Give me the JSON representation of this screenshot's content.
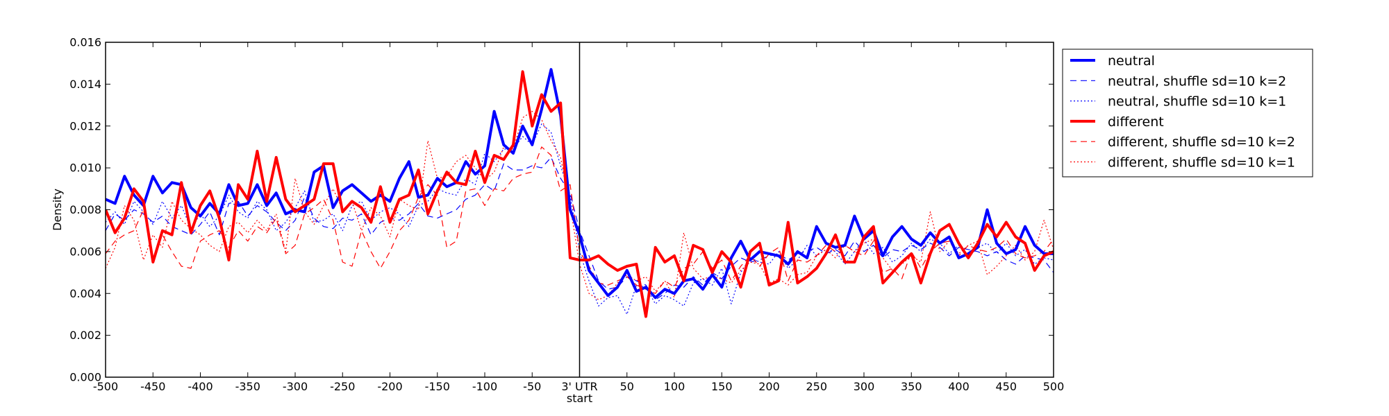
{
  "chart_data": {
    "type": "line",
    "xlabel": "",
    "ylabel": "Density",
    "xlim": [
      -500,
      500
    ],
    "ylim": [
      0,
      0.016
    ],
    "grid": false,
    "legend_position": "outside-right-top",
    "x_ticks": [
      -500,
      -450,
      -400,
      -350,
      -300,
      -250,
      -200,
      -150,
      -100,
      -50,
      0,
      50,
      100,
      150,
      200,
      250,
      300,
      350,
      400,
      450,
      500
    ],
    "x_tick_labels": [
      "-500",
      "-450",
      "-400",
      "-350",
      "-300",
      "-250",
      "-200",
      "-150",
      "-100",
      "-50",
      "3' UTR",
      "50",
      "100",
      "150",
      "200",
      "250",
      "300",
      "350",
      "400",
      "450",
      "500"
    ],
    "x_tick_sublabel": "start",
    "y_ticks": [
      0,
      0.002,
      0.004,
      0.006,
      0.008,
      0.01,
      0.012,
      0.014,
      0.016
    ],
    "y_tick_labels": [
      "0.000",
      "0.002",
      "0.004",
      "0.006",
      "0.008",
      "0.010",
      "0.012",
      "0.014",
      "0.016"
    ],
    "vertical_line_x": 0,
    "x": [
      -500,
      -490,
      -480,
      -470,
      -460,
      -450,
      -440,
      -430,
      -420,
      -410,
      -400,
      -390,
      -380,
      -370,
      -360,
      -350,
      -340,
      -330,
      -320,
      -310,
      -300,
      -290,
      -280,
      -270,
      -260,
      -250,
      -240,
      -230,
      -220,
      -210,
      -200,
      -190,
      -180,
      -170,
      -160,
      -150,
      -140,
      -130,
      -120,
      -110,
      -100,
      -90,
      -80,
      -70,
      -60,
      -50,
      -40,
      -30,
      -20,
      -10,
      0,
      10,
      20,
      30,
      40,
      50,
      60,
      70,
      80,
      90,
      100,
      110,
      120,
      130,
      140,
      150,
      160,
      170,
      180,
      190,
      200,
      210,
      220,
      230,
      240,
      250,
      260,
      270,
      280,
      290,
      300,
      310,
      320,
      330,
      340,
      350,
      360,
      370,
      380,
      390,
      400,
      410,
      420,
      430,
      440,
      450,
      460,
      470,
      480,
      490,
      500
    ],
    "series": [
      {
        "name": "neutral",
        "color": "#0000ff",
        "style": "solid",
        "width": 4,
        "values": [
          0.0085,
          0.0083,
          0.0096,
          0.0087,
          0.0082,
          0.0096,
          0.0088,
          0.0093,
          0.0092,
          0.0081,
          0.0077,
          0.0083,
          0.0078,
          0.0092,
          0.0082,
          0.0083,
          0.0092,
          0.0082,
          0.0088,
          0.0078,
          0.008,
          0.0079,
          0.0098,
          0.0101,
          0.0081,
          0.0089,
          0.0092,
          0.0088,
          0.0084,
          0.0087,
          0.0084,
          0.0095,
          0.0103,
          0.0086,
          0.0087,
          0.0095,
          0.0091,
          0.0093,
          0.0103,
          0.0097,
          0.0101,
          0.0127,
          0.0111,
          0.0107,
          0.012,
          0.0111,
          0.0128,
          0.0147,
          0.0125,
          0.008,
          0.0068,
          0.0051,
          0.0045,
          0.0039,
          0.0043,
          0.0051,
          0.0041,
          0.0043,
          0.0038,
          0.0042,
          0.004,
          0.0046,
          0.0047,
          0.0042,
          0.0049,
          0.0043,
          0.0057,
          0.0065,
          0.0056,
          0.006,
          0.0059,
          0.0058,
          0.0054,
          0.006,
          0.0057,
          0.0072,
          0.0064,
          0.0062,
          0.0063,
          0.0077,
          0.0066,
          0.007,
          0.0058,
          0.0067,
          0.0072,
          0.0066,
          0.0063,
          0.0069,
          0.0064,
          0.0067,
          0.0057,
          0.0059,
          0.0062,
          0.008,
          0.0064,
          0.0059,
          0.0061,
          0.0072,
          0.0063,
          0.0059,
          0.0059
        ]
      },
      {
        "name": "neutral, shuffle sd=10 k=2",
        "color": "#0000ff",
        "style": "dashed",
        "width": 1.2,
        "values": [
          0.007,
          0.0078,
          0.0075,
          0.008,
          0.0078,
          0.0074,
          0.0077,
          0.0072,
          0.007,
          0.0068,
          0.0073,
          0.0079,
          0.0068,
          0.0083,
          0.0084,
          0.0077,
          0.0082,
          0.0079,
          0.0074,
          0.007,
          0.0075,
          0.0086,
          0.0076,
          0.0072,
          0.0071,
          0.0076,
          0.0075,
          0.0078,
          0.0068,
          0.0074,
          0.0076,
          0.0075,
          0.0078,
          0.0083,
          0.0077,
          0.0076,
          0.0078,
          0.008,
          0.0085,
          0.0087,
          0.0092,
          0.0089,
          0.0102,
          0.0099,
          0.0099,
          0.0101,
          0.01,
          0.0105,
          0.0095,
          0.0088,
          0.007,
          0.0058,
          0.0046,
          0.0042,
          0.0043,
          0.0048,
          0.0046,
          0.0044,
          0.0037,
          0.004,
          0.0044,
          0.0043,
          0.0048,
          0.0044,
          0.005,
          0.0047,
          0.0053,
          0.0057,
          0.0055,
          0.0056,
          0.0058,
          0.0059,
          0.0056,
          0.0059,
          0.006,
          0.0062,
          0.0059,
          0.0061,
          0.0058,
          0.0065,
          0.006,
          0.0063,
          0.0057,
          0.0061,
          0.006,
          0.0063,
          0.0061,
          0.0064,
          0.0062,
          0.0058,
          0.0062,
          0.0061,
          0.006,
          0.0058,
          0.006,
          0.0056,
          0.0054,
          0.0058,
          0.0057,
          0.0056,
          0.005
        ]
      },
      {
        "name": "neutral, shuffle sd=10 k=1",
        "color": "#0000ff",
        "style": "dotted",
        "width": 1.2,
        "values": [
          0.0074,
          0.0079,
          0.0073,
          0.0084,
          0.0079,
          0.0073,
          0.0084,
          0.0076,
          0.0082,
          0.0071,
          0.0078,
          0.0072,
          0.0077,
          0.0087,
          0.0079,
          0.0076,
          0.0084,
          0.008,
          0.007,
          0.0074,
          0.0081,
          0.0089,
          0.0074,
          0.0075,
          0.0078,
          0.007,
          0.0082,
          0.0084,
          0.0075,
          0.0079,
          0.0081,
          0.0078,
          0.0072,
          0.0082,
          0.0084,
          0.009,
          0.0088,
          0.0087,
          0.0095,
          0.0092,
          0.0107,
          0.0103,
          0.0109,
          0.0109,
          0.0115,
          0.0111,
          0.0121,
          0.0117,
          0.0101,
          0.0087,
          0.006,
          0.0046,
          0.0034,
          0.0038,
          0.0039,
          0.003,
          0.0044,
          0.0043,
          0.0035,
          0.0039,
          0.0037,
          0.0034,
          0.0045,
          0.0047,
          0.0044,
          0.0052,
          0.0035,
          0.005,
          0.0057,
          0.0055,
          0.0054,
          0.006,
          0.0052,
          0.0056,
          0.0063,
          0.0058,
          0.0061,
          0.006,
          0.0054,
          0.006,
          0.0066,
          0.0059,
          0.0062,
          0.0055,
          0.0058,
          0.0064,
          0.006,
          0.0066,
          0.0064,
          0.0059,
          0.0063,
          0.0057,
          0.0062,
          0.0064,
          0.0059,
          0.0064,
          0.0058,
          0.0061,
          0.0054,
          0.0057,
          0.0056
        ]
      },
      {
        "name": "different",
        "color": "#ff0000",
        "style": "solid",
        "width": 4,
        "values": [
          0.008,
          0.0069,
          0.0076,
          0.009,
          0.0084,
          0.0055,
          0.007,
          0.0068,
          0.0093,
          0.0069,
          0.0082,
          0.0089,
          0.0076,
          0.0056,
          0.0092,
          0.0085,
          0.0108,
          0.0084,
          0.0105,
          0.0085,
          0.0079,
          0.0082,
          0.0085,
          0.0102,
          0.0102,
          0.0079,
          0.0084,
          0.0081,
          0.0074,
          0.0091,
          0.0074,
          0.0085,
          0.0087,
          0.0099,
          0.0078,
          0.0089,
          0.0098,
          0.0093,
          0.0092,
          0.0108,
          0.0093,
          0.0106,
          0.0104,
          0.0111,
          0.0146,
          0.012,
          0.0135,
          0.0127,
          0.0131,
          0.0057,
          0.0056,
          0.0056,
          0.0058,
          0.0054,
          0.0051,
          0.0053,
          0.0054,
          0.0029,
          0.0062,
          0.0055,
          0.0058,
          0.0046,
          0.0063,
          0.0061,
          0.005,
          0.006,
          0.0055,
          0.0043,
          0.006,
          0.0064,
          0.0044,
          0.0046,
          0.0074,
          0.0045,
          0.0048,
          0.0052,
          0.0059,
          0.0068,
          0.0055,
          0.0055,
          0.0067,
          0.0072,
          0.0045,
          0.005,
          0.0055,
          0.0059,
          0.0045,
          0.0059,
          0.007,
          0.0073,
          0.0064,
          0.0057,
          0.0064,
          0.0073,
          0.0067,
          0.0074,
          0.0067,
          0.0064,
          0.0051,
          0.0058,
          0.006
        ]
      },
      {
        "name": "different, shuffle sd=10 k=2",
        "color": "#ff0000",
        "style": "dashed",
        "width": 1.2,
        "values": [
          0.0059,
          0.0065,
          0.0068,
          0.007,
          0.008,
          0.0057,
          0.0068,
          0.006,
          0.0053,
          0.0052,
          0.0065,
          0.0068,
          0.007,
          0.0062,
          0.007,
          0.0065,
          0.0072,
          0.0069,
          0.0076,
          0.0059,
          0.0063,
          0.0078,
          0.0081,
          0.0085,
          0.0075,
          0.0055,
          0.0053,
          0.007,
          0.006,
          0.0052,
          0.006,
          0.007,
          0.0075,
          0.0086,
          0.0092,
          0.0087,
          0.0062,
          0.0065,
          0.0089,
          0.009,
          0.0082,
          0.009,
          0.0089,
          0.0095,
          0.0097,
          0.0098,
          0.011,
          0.0106,
          0.0089,
          0.0092,
          0.006,
          0.0053,
          0.0045,
          0.0044,
          0.0046,
          0.0048,
          0.0044,
          0.0042,
          0.004,
          0.0046,
          0.0043,
          0.0052,
          0.0054,
          0.006,
          0.0052,
          0.0056,
          0.0046,
          0.0053,
          0.0058,
          0.0053,
          0.0059,
          0.0062,
          0.0046,
          0.0056,
          0.0055,
          0.0058,
          0.0063,
          0.006,
          0.0063,
          0.006,
          0.0058,
          0.0065,
          0.005,
          0.0052,
          0.0047,
          0.006,
          0.0052,
          0.006,
          0.0064,
          0.0065,
          0.0058,
          0.0063,
          0.0061,
          0.006,
          0.0062,
          0.0066,
          0.0059,
          0.0057,
          0.0058,
          0.006,
          0.0066
        ]
      },
      {
        "name": "different, shuffle sd=10 k=1",
        "color": "#ff0000",
        "style": "dotted",
        "width": 1.2,
        "values": [
          0.0052,
          0.0062,
          0.0082,
          0.0075,
          0.0056,
          0.0068,
          0.0062,
          0.0084,
          0.0075,
          0.0071,
          0.0068,
          0.0063,
          0.006,
          0.0072,
          0.0074,
          0.0069,
          0.0075,
          0.007,
          0.0078,
          0.006,
          0.0095,
          0.0079,
          0.0073,
          0.0082,
          0.009,
          0.008,
          0.0084,
          0.007,
          0.0081,
          0.0077,
          0.0067,
          0.0085,
          0.0082,
          0.008,
          0.0113,
          0.0095,
          0.0096,
          0.0103,
          0.0106,
          0.01,
          0.0094,
          0.0098,
          0.011,
          0.0109,
          0.0124,
          0.0127,
          0.0123,
          0.0113,
          0.0105,
          0.0082,
          0.0054,
          0.004,
          0.0037,
          0.0039,
          0.0045,
          0.0049,
          0.0046,
          0.0048,
          0.0041,
          0.0046,
          0.0038,
          0.0069,
          0.0052,
          0.0047,
          0.0048,
          0.0047,
          0.0045,
          0.0051,
          0.0055,
          0.0054,
          0.0045,
          0.0047,
          0.0044,
          0.0049,
          0.005,
          0.0058,
          0.0061,
          0.0057,
          0.0063,
          0.006,
          0.0064,
          0.0066,
          0.0057,
          0.0051,
          0.0054,
          0.0058,
          0.0055,
          0.0079,
          0.006,
          0.0065,
          0.0059,
          0.0063,
          0.0065,
          0.0049,
          0.0053,
          0.0058,
          0.0063,
          0.0056,
          0.006,
          0.0075,
          0.0061
        ]
      }
    ]
  }
}
